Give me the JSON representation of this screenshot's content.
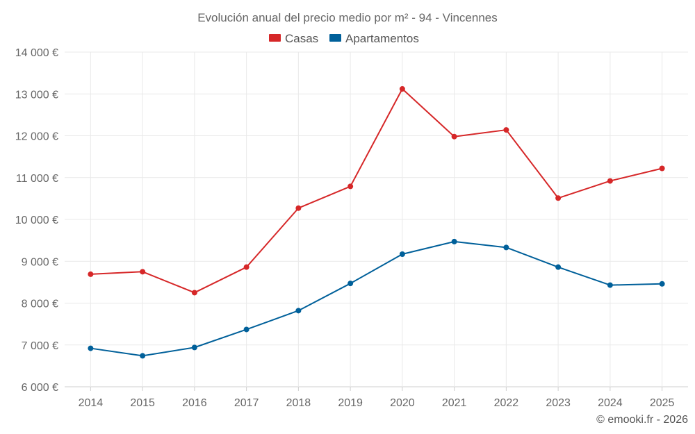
{
  "chart_data": {
    "type": "line",
    "title": "Evolución anual del precio medio por m² - 94 - Vincennes",
    "x": [
      "2014",
      "2015",
      "2016",
      "2017",
      "2018",
      "2019",
      "2020",
      "2021",
      "2022",
      "2023",
      "2024",
      "2025"
    ],
    "series": [
      {
        "name": "Casas",
        "color": "#d62728",
        "values": [
          8690,
          8750,
          8250,
          8860,
          10270,
          10790,
          13120,
          11980,
          12140,
          10510,
          10920,
          11220
        ]
      },
      {
        "name": "Apartamentos",
        "color": "#00609a",
        "values": [
          6920,
          6740,
          6940,
          7370,
          7820,
          8470,
          9170,
          9470,
          9330,
          8860,
          8430,
          8460
        ]
      }
    ],
    "ylim": [
      6000,
      14000
    ],
    "yticks": [
      6000,
      7000,
      8000,
      9000,
      10000,
      11000,
      12000,
      13000,
      14000
    ],
    "ytick_labels": [
      "6 000 €",
      "7 000 €",
      "8 000 €",
      "9 000 €",
      "10 000 €",
      "11 000 €",
      "12 000 €",
      "13 000 €",
      "14 000 €"
    ],
    "grid": true,
    "legend_position": "top-center",
    "xlabel": "",
    "ylabel": ""
  },
  "credit": "© emooki.fr - 2026"
}
